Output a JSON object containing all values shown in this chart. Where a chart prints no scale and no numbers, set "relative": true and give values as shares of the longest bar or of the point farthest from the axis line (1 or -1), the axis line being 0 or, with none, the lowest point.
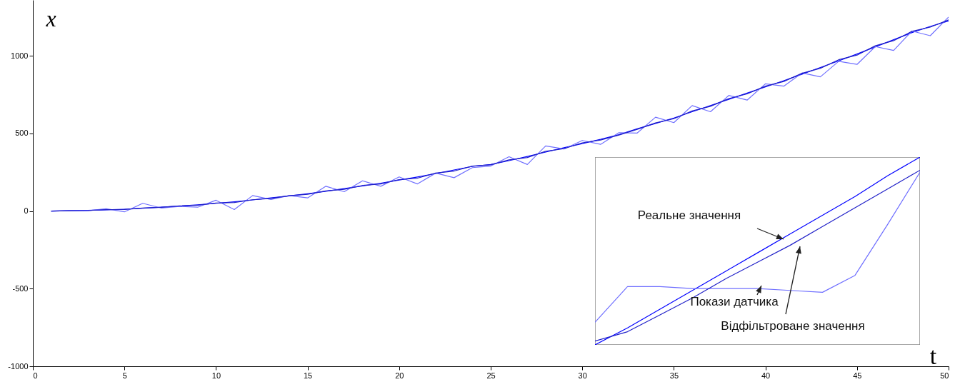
{
  "chart_data": [
    {
      "type": "line",
      "xlabel": "t",
      "ylabel": "x",
      "x": [
        1,
        2,
        3,
        4,
        5,
        6,
        7,
        8,
        9,
        10,
        11,
        12,
        13,
        14,
        15,
        16,
        17,
        18,
        19,
        20,
        21,
        22,
        23,
        24,
        25,
        26,
        27,
        28,
        29,
        30,
        31,
        32,
        33,
        34,
        35,
        36,
        37,
        38,
        39,
        40,
        41,
        42,
        43,
        44,
        45,
        46,
        47,
        48,
        49,
        50
      ],
      "xlim": [
        0,
        50
      ],
      "ylim": [
        -1000,
        1360
      ],
      "xticks": [
        0,
        5,
        10,
        15,
        20,
        25,
        30,
        35,
        40,
        45,
        50
      ],
      "yticks": [
        -1000,
        -500,
        0,
        500,
        1000
      ],
      "grid": false,
      "series": [
        {
          "color": "#0000ff",
          "values": [
            0,
            2,
            5,
            8,
            12,
            18,
            25,
            32,
            40,
            50,
            60,
            72,
            85,
            98,
            112,
            128,
            145,
            162,
            180,
            200,
            220,
            242,
            265,
            288,
            300,
            325,
            352,
            380,
            408,
            435,
            462,
            492,
            530,
            565,
            600,
            640,
            680,
            720,
            760,
            800,
            840,
            882,
            925,
            968,
            1012,
            1058,
            1104,
            1150,
            1190,
            1225
          ]
        },
        {
          "color": "#6f6fff",
          "values": [
            0,
            3,
            2,
            15,
            -5,
            50,
            20,
            30,
            25,
            70,
            10,
            100,
            75,
            100,
            85,
            160,
            125,
            195,
            160,
            220,
            175,
            245,
            215,
            280,
            290,
            350,
            300,
            420,
            400,
            455,
            430,
            505,
            503,
            605,
            570,
            680,
            640,
            745,
            715,
            820,
            805,
            890,
            865,
            965,
            945,
            1060,
            1035,
            1160,
            1130,
            1250
          ]
        },
        {
          "color": "#2020c8",
          "values": [
            0,
            2,
            4,
            9,
            10,
            20,
            24,
            33,
            38,
            52,
            55,
            73,
            82,
            99,
            108,
            130,
            140,
            165,
            175,
            203,
            212,
            245,
            258,
            290,
            298,
            330,
            345,
            385,
            402,
            440,
            458,
            490,
            527,
            568,
            595,
            645,
            675,
            725,
            755,
            805,
            835,
            888,
            920,
            975,
            1005,
            1065,
            1098,
            1158,
            1185,
            1232
          ]
        }
      ]
    },
    {
      "type": "line",
      "categories": [
        null,
        null,
        null,
        null,
        null,
        null,
        null,
        null,
        null,
        null,
        null
      ],
      "relative": true,
      "series": [
        {
          "name": "Реальне значення",
          "color": "#0000ff",
          "values": [
            0,
            0.09,
            0.19,
            0.29,
            0.39,
            0.49,
            0.59,
            0.69,
            0.79,
            0.9,
            1
          ]
        },
        {
          "name": "Покази датчика",
          "color": "#6f6fff",
          "values": [
            0.12,
            0.31,
            0.31,
            0.3,
            0.3,
            0.3,
            0.29,
            0.28,
            0.37,
            0.64,
            0.92
          ]
        },
        {
          "name": "Відфільтроване значення",
          "color": "#2020c8",
          "values": [
            0.02,
            0.07,
            0.16,
            0.25,
            0.35,
            0.44,
            0.53,
            0.63,
            0.73,
            0.83,
            0.93
          ]
        }
      ]
    }
  ]
}
